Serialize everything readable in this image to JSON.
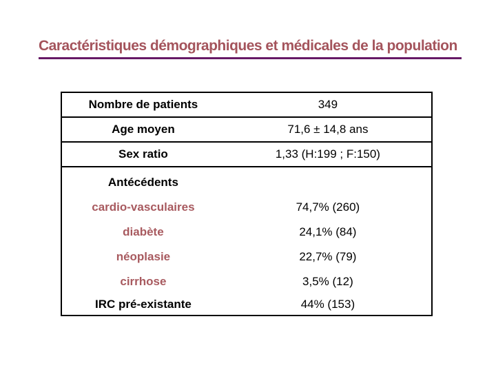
{
  "slide": {
    "title": "Caractéristiques démographiques et médicales de la population"
  },
  "table": {
    "rows": [
      {
        "label": "Nombre de patients",
        "value": "349"
      },
      {
        "label": "Age moyen",
        "value": "71,6 ± 14,8 ans"
      },
      {
        "label": "Sex ratio",
        "value": "1,33 (H:199 ; F:150)"
      }
    ],
    "section": {
      "header": "Antécédents",
      "rows": [
        {
          "label": "cardio-vasculaires",
          "value": "74,7% (260)",
          "label_color": "red"
        },
        {
          "label": "diabète",
          "value": "24,1% (84)",
          "label_color": "red"
        },
        {
          "label": "néoplasie",
          "value": "22,7% (79)",
          "label_color": "red"
        },
        {
          "label": "cirrhose",
          "value": "3,5% (12)",
          "label_color": "red"
        },
        {
          "label": "IRC pré-existante",
          "value": "44% (153)",
          "label_color": "black"
        }
      ]
    }
  },
  "colors": {
    "background": "#FFFFFF",
    "title_red": "#A4545C",
    "label_red": "#A85A5F",
    "underline_purple": "#661966",
    "text_black": "#000000",
    "border_black": "#000000"
  }
}
